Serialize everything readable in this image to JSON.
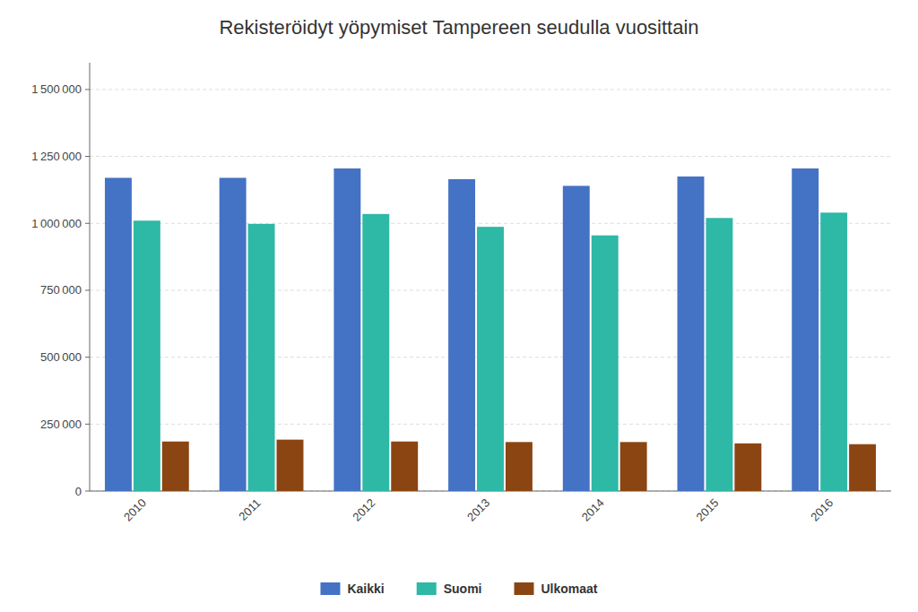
{
  "chart_data": {
    "type": "bar",
    "title": "Rekisteröidyt yöpymiset Tampereen seudulla vuosittain",
    "categories": [
      "2010",
      "2011",
      "2012",
      "2013",
      "2014",
      "2015",
      "2016"
    ],
    "series": [
      {
        "name": "Kaikki",
        "color": "#4472C4",
        "values": [
          1170000,
          1170000,
          1205000,
          1165000,
          1140000,
          1175000,
          1205000
        ]
      },
      {
        "name": "Suomi",
        "color": "#2EB8A6",
        "values": [
          1010000,
          998000,
          1035000,
          987000,
          955000,
          1020000,
          1040000
        ]
      },
      {
        "name": "Ulkomaat",
        "color": "#8B4513",
        "values": [
          185000,
          192000,
          185000,
          183000,
          183000,
          178000,
          175000
        ]
      }
    ],
    "ylim": [
      0,
      1600000
    ],
    "yticks": [
      0,
      {
        "value": 250000,
        "label": "250 000"
      },
      {
        "value": 500000,
        "label": "500 000"
      },
      {
        "value": 750000,
        "label": "750 000"
      },
      {
        "value": 1000000,
        "label": "1 000 000"
      },
      {
        "value": 1250000,
        "label": "1 250 000"
      },
      {
        "value": 1500000,
        "label": "1 500 000"
      }
    ],
    "grid": true,
    "legend": "bottom"
  }
}
